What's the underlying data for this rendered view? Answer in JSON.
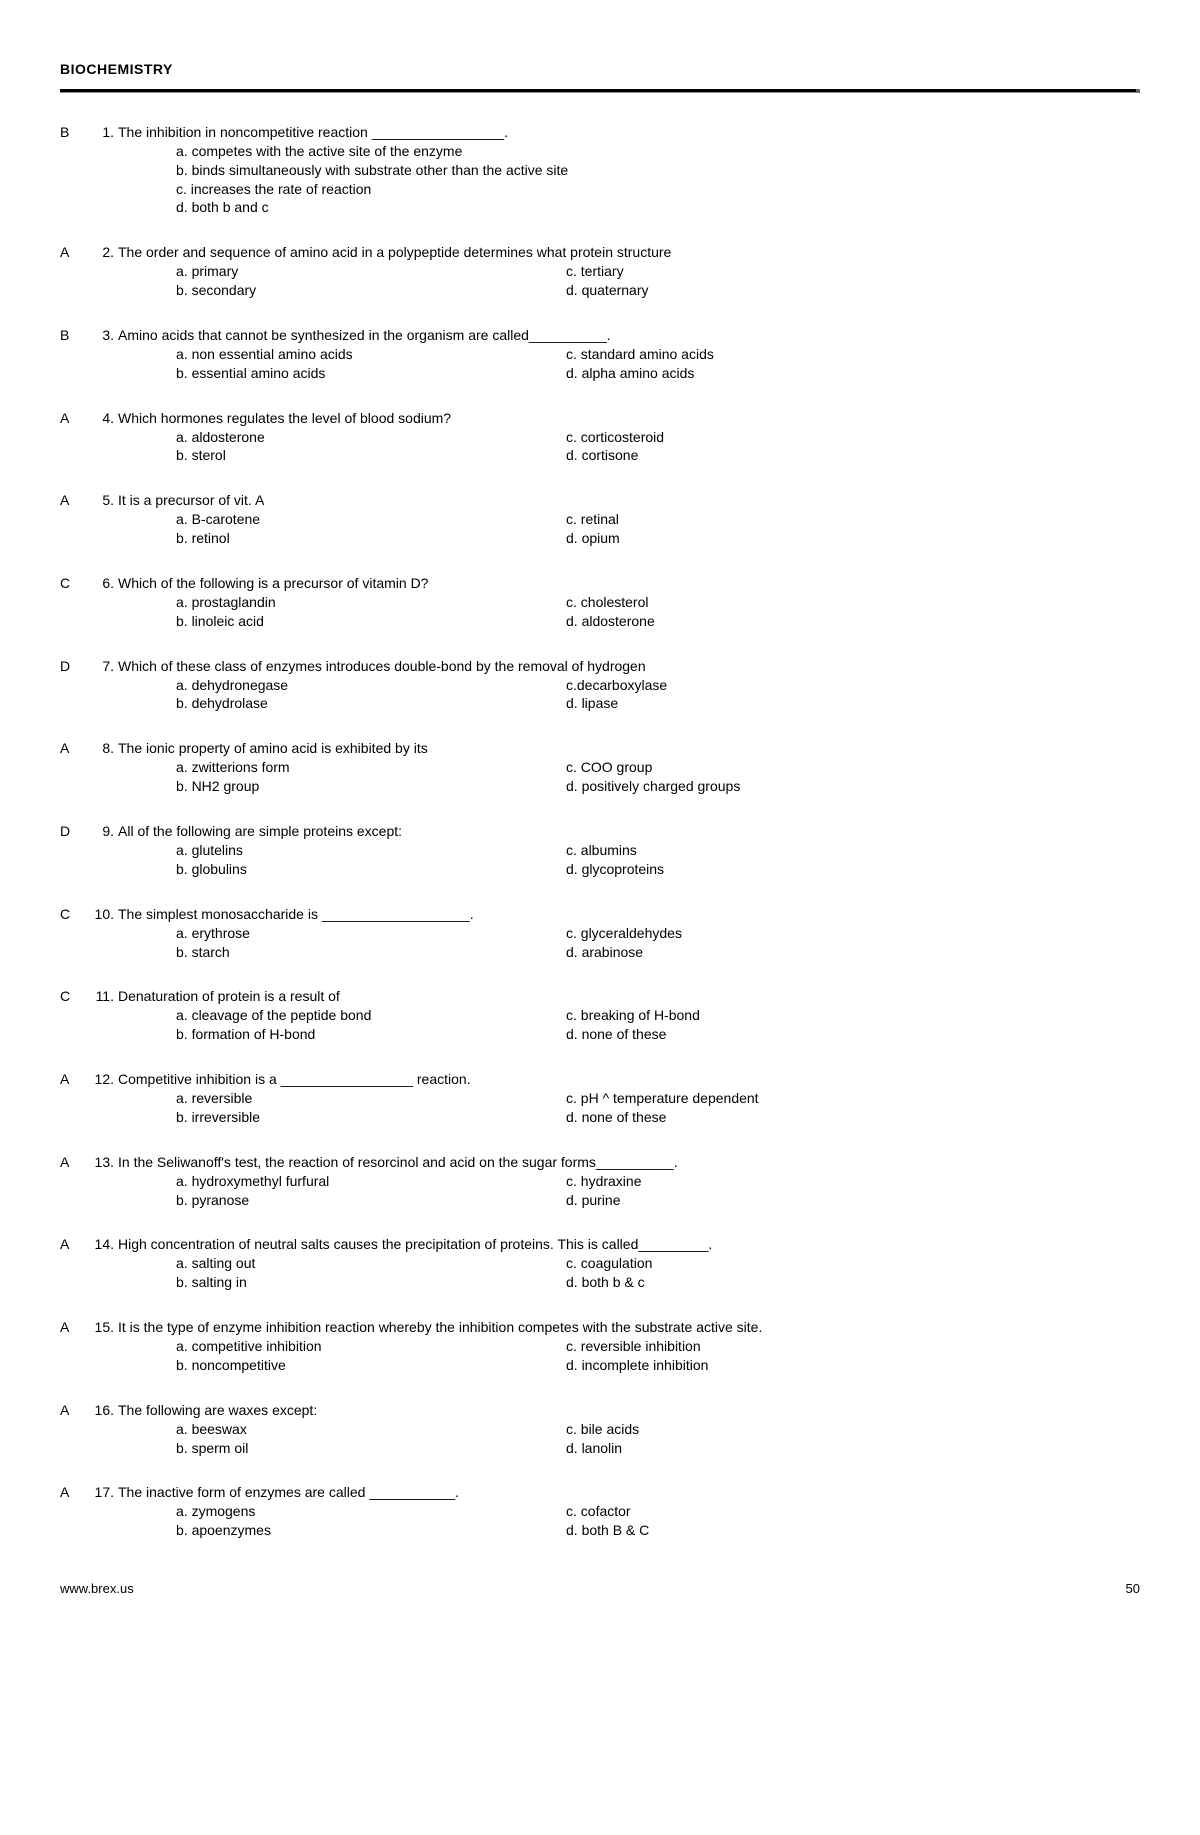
{
  "header": {
    "title": "BIOCHEMISTRY"
  },
  "footer": {
    "url": "www.brex.us",
    "page": "50"
  },
  "questions": [
    {
      "answer": "B",
      "num": "1.",
      "text": "The inhibition in  noncompetitive reaction _________________.",
      "layout": "vert",
      "opts": [
        "a. competes with the active site of the enzyme",
        "b. binds simultaneously with substrate other than the active site",
        "c. increases the rate of reaction",
        "d. both b and c"
      ]
    },
    {
      "answer": "A",
      "num": "2.",
      "text": "The order and sequence of amino acid in a polypeptide determines what protein structure",
      "layout": "twocol",
      "left": [
        "a. primary",
        "b. secondary"
      ],
      "right": [
        "c. tertiary",
        "d. quaternary"
      ]
    },
    {
      "answer": "B",
      "num": "3.",
      "text": "Amino acids that cannot be synthesized in the organism are called__________.",
      "layout": "twocol",
      "left": [
        "a. non essential amino acids",
        "b. essential amino acids"
      ],
      "right": [
        "c. standard amino acids",
        "d. alpha amino acids"
      ]
    },
    {
      "answer": "A",
      "num": "4.",
      "text": "Which hormones regulates the level of blood sodium?",
      "layout": "twocol",
      "left": [
        "a. aldosterone",
        "b. sterol"
      ],
      "right": [
        "c. corticosteroid",
        "d. cortisone"
      ]
    },
    {
      "answer": "A",
      "num": "5.",
      "text": "It is a precursor of vit. A",
      "layout": "twocol",
      "left": [
        "a. B-carotene",
        "b. retinol"
      ],
      "right": [
        "c. retinal",
        "d. opium"
      ]
    },
    {
      "answer": "C",
      "num": "6.",
      "text": "Which of the following is a precursor of vitamin D?",
      "layout": "twocol",
      "left": [
        "a. prostaglandin",
        "b. linoleic acid"
      ],
      "right": [
        "c. cholesterol",
        "d. aldosterone"
      ]
    },
    {
      "answer": "D",
      "num": "7.",
      "text": "Which of these class of enzymes introduces double-bond by the removal of hydrogen",
      "layout": "twocol",
      "left": [
        "a. dehydronegase",
        "b. dehydrolase"
      ],
      "right": [
        "c.decarboxylase",
        "d. lipase"
      ]
    },
    {
      "answer": "A",
      "num": "8.",
      "text": "The ionic property of amino acid is exhibited by its",
      "layout": "twocol",
      "left": [
        "a. zwitterions form",
        "b. NH2 group"
      ],
      "right": [
        "c. COO group",
        "d. positively charged groups"
      ]
    },
    {
      "answer": "D",
      "num": "9.",
      "text": "All of the following are simple proteins except:",
      "layout": "twocol",
      "left": [
        "a. glutelins",
        "b. globulins"
      ],
      "right": [
        "c. albumins",
        "d. glycoproteins"
      ]
    },
    {
      "answer": "C",
      "num": "10.",
      "text": "The simplest monosaccharide is ___________________.",
      "layout": "twocol",
      "left": [
        "a. erythrose",
        "b. starch"
      ],
      "right": [
        "c. glyceraldehydes",
        "d. arabinose"
      ]
    },
    {
      "answer": "C",
      "num": "11.",
      "text": "Denaturation of protein is a result of",
      "layout": "twocol",
      "left": [
        "a. cleavage of the peptide bond",
        "b. formation of H-bond"
      ],
      "right": [
        "c. breaking of H-bond",
        "d. none of these"
      ]
    },
    {
      "answer": "A",
      "num": "12.",
      "text": "Competitive inhibition is a _________________ reaction.",
      "layout": "twocol",
      "left": [
        "a. reversible",
        "b. irreversible"
      ],
      "right": [
        "c. pH ^ temperature dependent",
        "d. none of these"
      ]
    },
    {
      "answer": "A",
      "num": "13.",
      "text": "In the Seliwanoff's test, the reaction of resorcinol and acid on the sugar forms__________.",
      "layout": "twocol",
      "left": [
        "a. hydroxymethyl furfural",
        "b. pyranose"
      ],
      "right": [
        "c. hydraxine",
        "d. purine"
      ]
    },
    {
      "answer": "A",
      "num": "14.",
      "text": "High concentration of neutral salts causes the precipitation of proteins. This is called_________.",
      "layout": "twocol",
      "left": [
        "a. salting out",
        "b. salting in"
      ],
      "right": [
        "c. coagulation",
        "d. both b & c"
      ]
    },
    {
      "answer": "A",
      "num": "15.",
      "text": "It is the type of enzyme inhibition reaction whereby the inhibition competes with the substrate  active site.",
      "layout": "twocol",
      "left": [
        "a. competitive inhibition",
        "b. noncompetitive"
      ],
      "right": [
        "c. reversible inhibition",
        "d. incomplete inhibition"
      ]
    },
    {
      "answer": "A",
      "num": "16.",
      "text": "The following are waxes except:",
      "layout": "twocol",
      "left": [
        "a. beeswax",
        "b. sperm oil"
      ],
      "right": [
        "c. bile acids",
        "d. lanolin"
      ]
    },
    {
      "answer": "A",
      "num": "17.",
      "text": "The inactive form of enzymes are called ___________.",
      "layout": "twocol",
      "left": [
        "a. zymogens",
        "b. apoenzymes"
      ],
      "right": [
        "c. cofactor",
        "d. both B & C"
      ]
    }
  ]
}
